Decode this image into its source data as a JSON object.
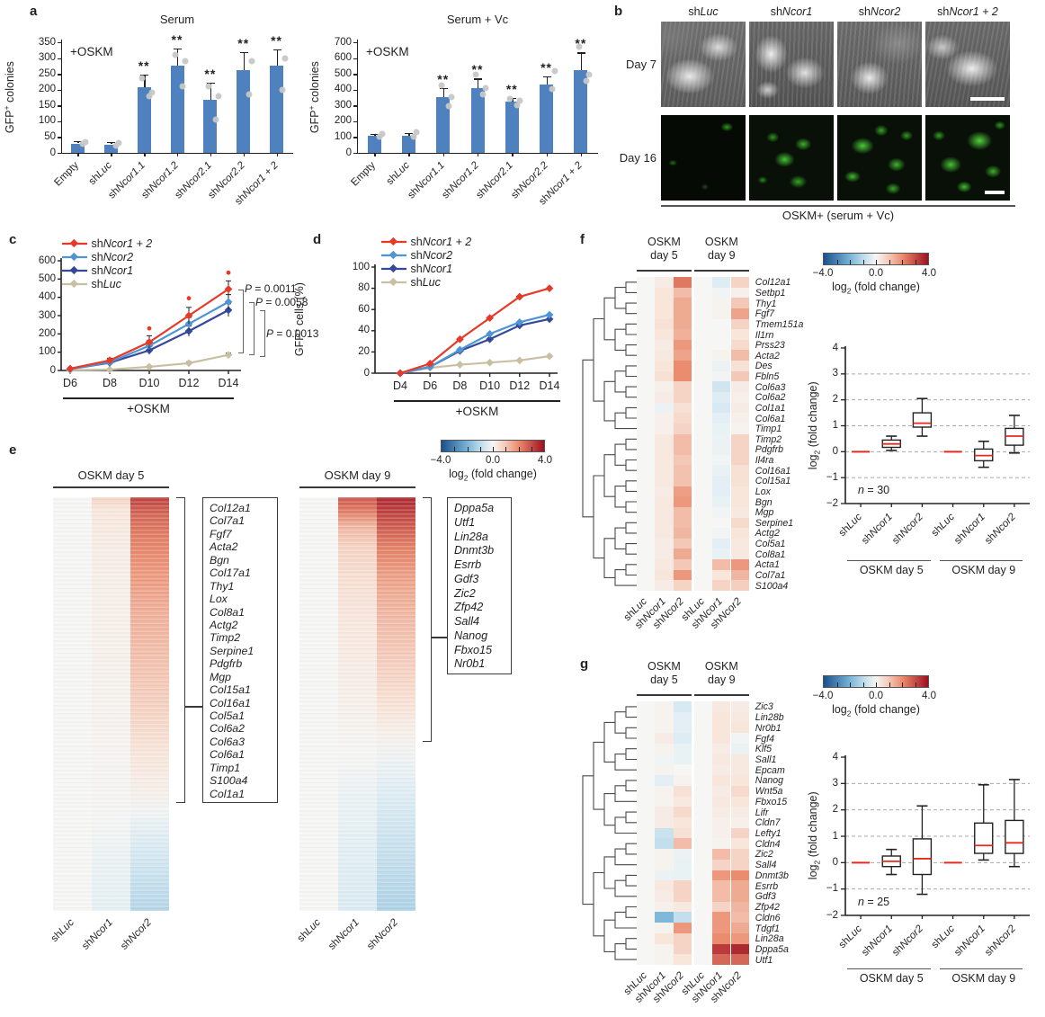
{
  "colors": {
    "bar_blue": "#4e81bd",
    "dot_gray": "#c7c7c7",
    "red": "#e63a28",
    "light_blue": "#4f94d4",
    "navy": "#35489c",
    "tan": "#c9c0a4",
    "median_red": "#e8291c"
  },
  "panel_a": {
    "label": "a",
    "charts": [
      {
        "title": "Serum",
        "annotation": "+OSKM",
        "ylabel": "GFP+ colonies",
        "ymax": 350,
        "ystep": 50,
        "categories": [
          "Empty",
          "shLuc",
          "shNcor1.1",
          "shNcor1.2",
          "shNcor2.1",
          "shNcor2.2",
          "shNcor1 + 2"
        ],
        "values": [
          30,
          27,
          208,
          275,
          168,
          262,
          275
        ],
        "errors": [
          8,
          8,
          40,
          55,
          55,
          58,
          52
        ],
        "sig": [
          "",
          "",
          "**",
          "**",
          "**",
          "**",
          "**"
        ],
        "dots": [
          [
            28,
            35
          ],
          [
            22,
            32
          ],
          [
            180,
            190,
            235
          ],
          [
            210,
            290,
            310
          ],
          [
            105,
            180,
            210
          ],
          [
            185,
            290
          ],
          [
            200,
            300
          ]
        ]
      },
      {
        "title": "Serum + Vc",
        "annotation": "+OSKM",
        "ylabel": "GFP+ colonies",
        "ymax": 700,
        "ystep": 100,
        "categories": [
          "Empty",
          "shLuc",
          "shNcor1.1",
          "shNcor1.2",
          "shNcor2.1",
          "shNcor2.2",
          "shNcor1 + 2"
        ],
        "values": [
          110,
          110,
          355,
          410,
          325,
          430,
          525
        ],
        "errors": [
          12,
          18,
          55,
          60,
          22,
          55,
          110
        ],
        "sig": [
          "",
          "",
          "**",
          "**",
          "**",
          "**",
          "**"
        ],
        "dots": [
          [
            105,
            120
          ],
          [
            100,
            130
          ],
          [
            295,
            355,
            425
          ],
          [
            370,
            410,
            495
          ],
          [
            300,
            330,
            340
          ],
          [
            405,
            520
          ],
          [
            455,
            495,
            670
          ]
        ]
      }
    ]
  },
  "panel_b": {
    "label": "b",
    "col_titles": [
      "shLuc",
      "shNcor1",
      "shNcor2",
      "shNcor1 + 2"
    ],
    "row_titles": [
      "Day 7",
      "Day 16"
    ],
    "caption": "OSKM+ (serum + Vc)"
  },
  "panel_c": {
    "label": "c",
    "ylabel": "GFP+ colonies",
    "xlabel": "+OSKM",
    "ymax": 600,
    "ystep": 100,
    "x_labels": [
      "D6",
      "D8",
      "D10",
      "D12",
      "D14"
    ],
    "series": [
      {
        "name": "shNcor1 + 2",
        "color": "red",
        "values": [
          10,
          55,
          155,
          300,
          445
        ],
        "errors": [
          5,
          12,
          35,
          45,
          45
        ]
      },
      {
        "name": "shNcor2",
        "color": "light_blue",
        "values": [
          8,
          45,
          135,
          255,
          375
        ],
        "errors": [
          4,
          10,
          28,
          35,
          40
        ]
      },
      {
        "name": "shNcor1",
        "color": "navy",
        "values": [
          8,
          42,
          110,
          215,
          330
        ],
        "errors": [
          4,
          8,
          22,
          28,
          35
        ]
      },
      {
        "name": "shLuc",
        "color": "tan",
        "values": [
          2,
          5,
          20,
          40,
          85
        ],
        "errors": [
          2,
          3,
          6,
          8,
          10
        ]
      }
    ],
    "outliers": [
      [
        2,
        230
      ],
      [
        3,
        395
      ],
      [
        4,
        535
      ]
    ],
    "p_values": [
      "P = 0.0011",
      "P = 0.0058",
      "P = 0.0013"
    ]
  },
  "panel_d": {
    "label": "d",
    "ylabel": "GFP+ cells (%)",
    "xlabel": "+OSKM",
    "ymax": 100,
    "ystep": 20,
    "x_labels": [
      "D4",
      "D6",
      "D8",
      "D10",
      "D12",
      "D14"
    ],
    "series": [
      {
        "name": "shNcor1 + 2",
        "color": "red",
        "values": [
          0,
          9,
          32,
          52,
          72,
          80
        ]
      },
      {
        "name": "shNcor2",
        "color": "light_blue",
        "values": [
          0,
          6,
          22,
          37,
          48,
          55
        ]
      },
      {
        "name": "shNcor1",
        "color": "navy",
        "values": [
          0,
          6,
          21,
          32,
          45,
          51
        ]
      },
      {
        "name": "shLuc",
        "color": "tan",
        "values": [
          0,
          5,
          8,
          10,
          12,
          16
        ]
      }
    ]
  },
  "panel_e": {
    "label": "e",
    "colorbar": {
      "min": "−4.0",
      "mid": "0.0",
      "max": "4.0",
      "label": "log2 (fold change)"
    },
    "heatmaps": [
      {
        "title": "OSKM day 5",
        "col_labels": [
          "shLuc",
          "shNcor1",
          "shNcor2"
        ],
        "col_gradients": [
          [
            [
              0,
              0
            ],
            [
              100,
              0
            ]
          ],
          [
            [
              0,
              0.8
            ],
            [
              3,
              0.5
            ],
            [
              8,
              0.35
            ],
            [
              15,
              0.25
            ],
            [
              30,
              0.2
            ],
            [
              50,
              0.12
            ],
            [
              68,
              0.05
            ],
            [
              78,
              -0.05
            ],
            [
              90,
              -0.25
            ],
            [
              100,
              -0.35
            ]
          ],
          [
            [
              0,
              3.2
            ],
            [
              4,
              2.6
            ],
            [
              10,
              2.2
            ],
            [
              18,
              1.8
            ],
            [
              28,
              1.4
            ],
            [
              40,
              1.1
            ],
            [
              52,
              0.8
            ],
            [
              62,
              0.5
            ],
            [
              70,
              0.25
            ],
            [
              76,
              -0.1
            ],
            [
              84,
              -0.55
            ],
            [
              93,
              -0.85
            ],
            [
              100,
              -1.1
            ]
          ]
        ],
        "gene_box": [
          "Col12a1",
          "Col7a1",
          "Fgf7",
          "Acta2",
          "Bgn",
          "Col17a1",
          "Thy1",
          "Lox",
          "Col8a1",
          "Actg2",
          "Timp2",
          "Serpine1",
          "Pdgfrb",
          "Mgp",
          "Col15a1",
          "Col16a1",
          "Col5a1",
          "Col6a2",
          "Col6a3",
          "Col6a1",
          "Timp1",
          "S100a4",
          "Col1a1"
        ]
      },
      {
        "title": "OSKM day 9",
        "col_labels": [
          "shLuc",
          "shNcor1",
          "shNcor2"
        ],
        "col_gradients": [
          [
            [
              0,
              0
            ],
            [
              100,
              0
            ]
          ],
          [
            [
              0,
              2.8
            ],
            [
              3,
              2.3
            ],
            [
              7,
              1.3
            ],
            [
              12,
              0.8
            ],
            [
              20,
              0.6
            ],
            [
              32,
              0.4
            ],
            [
              45,
              0.25
            ],
            [
              55,
              0.12
            ],
            [
              62,
              0
            ],
            [
              72,
              -0.2
            ],
            [
              82,
              -0.35
            ],
            [
              100,
              -0.55
            ]
          ],
          [
            [
              0,
              3.6
            ],
            [
              5,
              3.0
            ],
            [
              12,
              2.2
            ],
            [
              20,
              1.6
            ],
            [
              30,
              1.2
            ],
            [
              40,
              0.9
            ],
            [
              50,
              0.55
            ],
            [
              57,
              0.2
            ],
            [
              63,
              -0.15
            ],
            [
              72,
              -0.5
            ],
            [
              84,
              -0.8
            ],
            [
              100,
              -1.2
            ]
          ]
        ],
        "gene_box": [
          "Dppa5a",
          "Utf1",
          "Lin28a",
          "Dnmt3b",
          "Esrrb",
          "Gdf3",
          "Zic2",
          "Zfp42",
          "Sall4",
          "Nanog",
          "Fbxo15",
          "Nr0b1"
        ]
      }
    ]
  },
  "panel_f": {
    "label": "f",
    "group_titles": [
      [
        "OSKM",
        "day 5"
      ],
      [
        "OSKM",
        "day 9"
      ]
    ],
    "col_labels": [
      "shLuc",
      "shNcor1",
      "shNcor2",
      "shLuc",
      "shNcor1",
      "shNcor2"
    ],
    "colorbar": {
      "min": "−4.0",
      "mid": "0.0",
      "max": "4.0",
      "label": "log2 (fold change)"
    },
    "genes": [
      "Col12a1",
      "Setbp1",
      "Thy1",
      "Fgf7",
      "Tmem151a",
      "Il1rn",
      "Prss23",
      "Acta2",
      "Des",
      "Fbln5",
      "Col6a3",
      "Col6a2",
      "Col1a1",
      "Col6a1",
      "Timp1",
      "Timp2",
      "Pdgfrb",
      "Il4ra",
      "Col16a1",
      "Col15a1",
      "Lox",
      "Bgn",
      "Mgp",
      "Serpine1",
      "Actg2",
      "Col5a1",
      "Col8a1",
      "Acta1",
      "Col7a1",
      "S100a4"
    ],
    "values": [
      [
        0,
        0.3,
        2.3,
        0,
        -0.5,
        0.8
      ],
      [
        0,
        0.5,
        1.2,
        0,
        -0.1,
        0.2
      ],
      [
        0,
        0.5,
        1.5,
        0,
        0.1,
        1.0
      ],
      [
        0,
        0.5,
        1.5,
        0,
        0.1,
        1.6
      ],
      [
        0,
        0.6,
        1.5,
        0,
        0,
        0.8
      ],
      [
        0,
        0.5,
        1.4,
        0,
        0,
        0.5
      ],
      [
        0,
        0.3,
        1.8,
        0,
        0,
        0.7
      ],
      [
        0,
        0.4,
        1.6,
        0,
        0.1,
        1.2
      ],
      [
        0,
        0.5,
        2.0,
        0,
        -0.2,
        0.6
      ],
      [
        0,
        0.6,
        2.0,
        0,
        -0.1,
        1.0
      ],
      [
        0,
        0.2,
        0.8,
        0,
        -0.7,
        0.3
      ],
      [
        0,
        0.3,
        0.8,
        0,
        -0.5,
        0.2
      ],
      [
        0,
        -0.2,
        0.6,
        0,
        -0.6,
        0.3
      ],
      [
        0,
        0.2,
        0.7,
        0,
        -0.4,
        0.2
      ],
      [
        0,
        0.2,
        0.8,
        0,
        -0.3,
        0.1
      ],
      [
        0,
        0.4,
        1.2,
        0,
        -0.2,
        0.8
      ],
      [
        0,
        0.4,
        1.2,
        0,
        -0.2,
        0.8
      ],
      [
        0,
        0.4,
        1.0,
        0,
        -0.1,
        0.8
      ],
      [
        0,
        0.4,
        1.1,
        0,
        -0.3,
        0.6
      ],
      [
        0,
        0.4,
        1.1,
        0,
        -0.4,
        0.6
      ],
      [
        0,
        0.3,
        1.7,
        0,
        -0.4,
        0.5
      ],
      [
        0,
        0.4,
        1.8,
        0,
        -0.3,
        0.5
      ],
      [
        0,
        0.4,
        1.2,
        0,
        -0.1,
        0.4
      ],
      [
        0,
        0.4,
        1.2,
        0,
        0,
        0.7
      ],
      [
        0,
        0.4,
        1.3,
        0,
        -0.1,
        0.5
      ],
      [
        0,
        0.3,
        1.0,
        0,
        -0.4,
        0.4
      ],
      [
        0,
        0.3,
        1.5,
        0,
        -0.3,
        0.4
      ],
      [
        0,
        0.4,
        1.0,
        0,
        1.2,
        1.8
      ],
      [
        0,
        0.5,
        1.8,
        0,
        0.5,
        1.3
      ],
      [
        0,
        0.3,
        0.8,
        0,
        0.8,
        0.9
      ]
    ],
    "boxplot": {
      "ylabel": "log2 (fold change)",
      "ylim": [
        -2,
        4
      ],
      "n_label": "n = 30",
      "categories": [
        "shLuc",
        "shNcor1",
        "shNcor2",
        "shLuc",
        "shNcor1",
        "shNcor2"
      ],
      "group_labels": [
        "OSKM day 5",
        "OSKM day 9"
      ],
      "boxes": [
        {
          "flat": 0
        },
        {
          "lo": 0.05,
          "q1": 0.17,
          "med": 0.3,
          "q3": 0.45,
          "hi": 0.6
        },
        {
          "lo": 0.6,
          "q1": 0.95,
          "med": 1.1,
          "q3": 1.5,
          "hi": 2.05
        },
        {
          "flat": 0
        },
        {
          "lo": -0.6,
          "q1": -0.35,
          "med": -0.15,
          "q3": 0.1,
          "hi": 0.4
        },
        {
          "lo": -0.05,
          "q1": 0.25,
          "med": 0.6,
          "q3": 0.9,
          "hi": 1.4
        }
      ]
    }
  },
  "panel_g": {
    "label": "g",
    "group_titles": [
      [
        "OSKM",
        "day 5"
      ],
      [
        "OSKM",
        "day 9"
      ]
    ],
    "col_labels": [
      "shLuc",
      "shNcor1",
      "shNcor2",
      "shLuc",
      "shNcor1",
      "shNcor2"
    ],
    "colorbar": {
      "min": "−4.0",
      "mid": "0.0",
      "max": "4.0",
      "label": "log2 (fold change)"
    },
    "genes": [
      "Zic3",
      "Lin28b",
      "Nr0b1",
      "Fgf4",
      "Klf5",
      "Sall1",
      "Epcam",
      "Nanog",
      "Wnt5a",
      "Fbxo15",
      "Lifr",
      "Cldn7",
      "Lefty1",
      "Cldn4",
      "Zic2",
      "Sall4",
      "Dnmt3b",
      "Esrrb",
      "Gdf3",
      "Zfp42",
      "Cldn6",
      "Tdgf1",
      "Lin28a",
      "Dppa5a",
      "Utf1"
    ],
    "values": [
      [
        0,
        0.1,
        -0.6,
        0,
        0.4,
        0.3
      ],
      [
        0,
        0.1,
        -0.4,
        0,
        0.5,
        0.4
      ],
      [
        0,
        0.1,
        -0.4,
        0,
        0.5,
        0.5
      ],
      [
        0,
        0.3,
        -0.5,
        0,
        0.5,
        -0.1
      ],
      [
        0,
        0.1,
        -0.3,
        0,
        0.3,
        -0.2
      ],
      [
        0,
        -0.1,
        -0.3,
        0,
        0.4,
        0.4
      ],
      [
        0,
        0.1,
        0,
        0,
        0.3,
        0.4
      ],
      [
        0,
        -0.4,
        0.1,
        0,
        0.5,
        0.5
      ],
      [
        0,
        0.1,
        0.6,
        0,
        0.3,
        0.7
      ],
      [
        0,
        0.1,
        0.4,
        0,
        0.4,
        0.5
      ],
      [
        0,
        0.3,
        0.7,
        0,
        0.3,
        0.3
      ],
      [
        0,
        0.3,
        0.5,
        0,
        0.2,
        0.2
      ],
      [
        0,
        -0.8,
        0.6,
        0,
        0.2,
        0.8
      ],
      [
        0,
        -0.9,
        1.2,
        0,
        0.1,
        0.5
      ],
      [
        0,
        0.1,
        -0.2,
        0,
        1.2,
        0.8
      ],
      [
        0,
        0.1,
        -0.3,
        0,
        0.8,
        0.8
      ],
      [
        0,
        -0.2,
        -0.3,
        0,
        1.8,
        2.0
      ],
      [
        0,
        0.4,
        0.8,
        0,
        1.2,
        1.5
      ],
      [
        0,
        0.3,
        0.8,
        0,
        1.2,
        1.5
      ],
      [
        0,
        0.2,
        0.4,
        0,
        0.8,
        1.3
      ],
      [
        0,
        -1.9,
        -0.9,
        0,
        1.8,
        1.2
      ],
      [
        0,
        0.1,
        1.8,
        0,
        1.8,
        1.5
      ],
      [
        0,
        0.5,
        0.8,
        0,
        2.0,
        1.8
      ],
      [
        0,
        0.1,
        0.8,
        0,
        3.3,
        3.6
      ],
      [
        0,
        0.1,
        0.5,
        0,
        2.6,
        2.6
      ]
    ],
    "boxplot": {
      "ylabel": "log2 (fold change)",
      "ylim": [
        -2,
        4
      ],
      "n_label": "n = 25",
      "categories": [
        "shLuc",
        "shNcor1",
        "shNcor2",
        "shLuc",
        "shNcor1",
        "shNcor2"
      ],
      "group_labels": [
        "OSKM day 5",
        "OSKM day 9"
      ],
      "boxes": [
        {
          "flat": 0
        },
        {
          "lo": -0.45,
          "q1": -0.15,
          "med": 0.05,
          "q3": 0.25,
          "hi": 0.5
        },
        {
          "lo": -1.2,
          "q1": -0.45,
          "med": 0.15,
          "q3": 0.9,
          "hi": 2.15
        },
        {
          "flat": 0
        },
        {
          "lo": 0.1,
          "q1": 0.35,
          "med": 0.65,
          "q3": 1.5,
          "hi": 2.95
        },
        {
          "lo": -0.15,
          "q1": 0.35,
          "med": 0.75,
          "q3": 1.6,
          "hi": 3.15
        }
      ]
    }
  }
}
